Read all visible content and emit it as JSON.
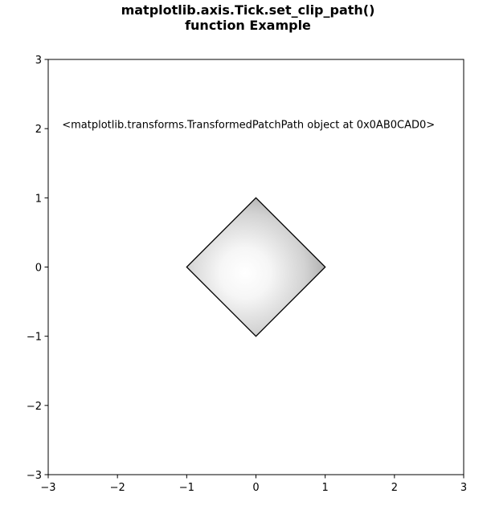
{
  "chart_data": {
    "type": "scatter",
    "title_lines": [
      "matplotlib.axis.Tick.set_clip_path()",
      "function Example"
    ],
    "xlabel": "",
    "ylabel": "",
    "xlim": [
      -3,
      3
    ],
    "ylim": [
      -3,
      3
    ],
    "x_ticks": [
      -3,
      -2,
      -1,
      0,
      1,
      2,
      3
    ],
    "y_ticks": [
      -3,
      -2,
      -1,
      0,
      1,
      2,
      3
    ],
    "x_tick_labels": [
      "−3",
      "−2",
      "−1",
      "0",
      "1",
      "2",
      "3"
    ],
    "y_tick_labels": [
      "−3",
      "−2",
      "−1",
      "0",
      "1",
      "2",
      "3"
    ],
    "grid": false,
    "annotation": {
      "text": "<matplotlib.transforms.TransformedPatchPath object at 0x0AB0CAD0>",
      "x": -2.8,
      "y": 2.0
    },
    "polygon": {
      "vertices": [
        [
          0,
          1
        ],
        [
          1,
          0
        ],
        [
          0,
          -1
        ],
        [
          -1,
          0
        ]
      ],
      "edge_color": "#000000",
      "fill": "grey radial gradient, light near center (-0.1, -0.1), darker toward the upper-right edge"
    }
  }
}
